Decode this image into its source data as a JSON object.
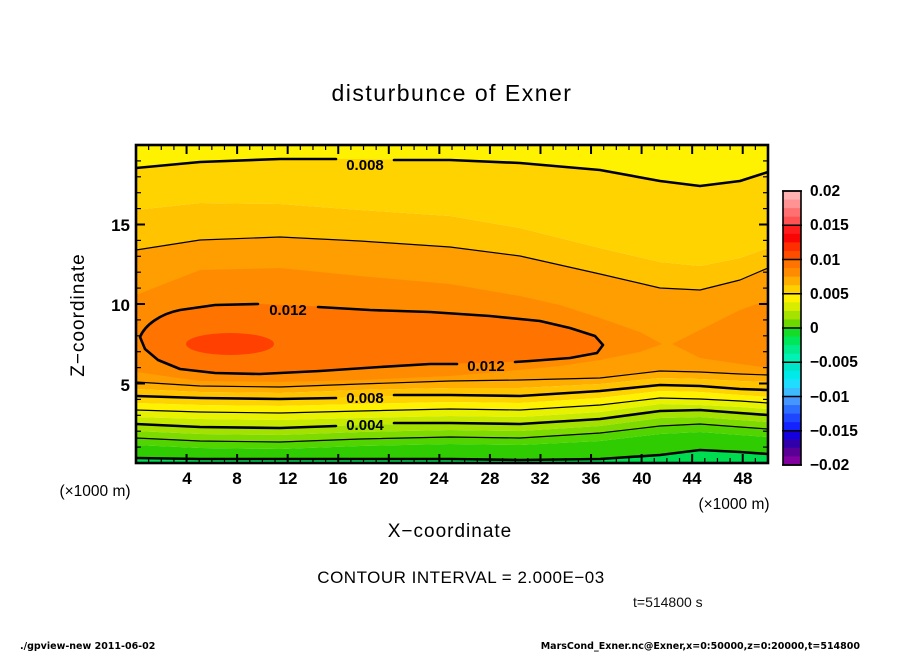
{
  "title": "disturbunce of Exner",
  "axes": {
    "x": {
      "label": "X−coordinate",
      "unit": "(×1000 m)",
      "tick_labels": [
        "4",
        "8",
        "12",
        "16",
        "20",
        "24",
        "28",
        "32",
        "36",
        "40",
        "44",
        "48"
      ],
      "range": [
        0,
        50
      ]
    },
    "y": {
      "label": "Z−coordinate",
      "unit": "(×1000 m)",
      "tick_labels": [
        "5",
        "10",
        "15"
      ],
      "range": [
        0,
        20
      ]
    }
  },
  "contours": {
    "labels": [
      "0.008",
      "0.012",
      "0.012",
      "0.008",
      "0.004"
    ]
  },
  "palette": {
    "p0135": "#ff4000",
    "p0125": "#ff7300",
    "p0115": "#ff8c00",
    "p0105": "#ff9e00",
    "p0095": "#ffad00",
    "p0085": "#ffc300",
    "p0075": "#ffd300",
    "p0065": "#fff200",
    "p0055": "#e8f200",
    "p0045": "#c8ea00",
    "p0035": "#a4e000",
    "p0025": "#7edb00",
    "p0015": "#52d400",
    "p0005": "#2ecc00",
    "pneg": "#00dc50"
  },
  "colorbar": {
    "tick_labels": [
      "0.02",
      "0.015",
      "0.01",
      "0.005",
      "0",
      "−0.005",
      "−0.01",
      "−0.015",
      "−0.02"
    ],
    "cell_colors": [
      "#ffb0b0",
      "#ff9292",
      "#ff7070",
      "#ff5252",
      "#ff1c1c",
      "#fa0505",
      "#ff2e00",
      "#ff4d00",
      "#ff7300",
      "#ff8c00",
      "#ffad00",
      "#ffd000",
      "#fff000",
      "#d8ec00",
      "#a6e200",
      "#6cd800",
      "#14dc28",
      "#00e65a",
      "#00ec8c",
      "#00f2b4",
      "#00e4c8",
      "#00eaea",
      "#20ddff",
      "#3cbcff",
      "#4696ff",
      "#2e6eff",
      "#1e46ff",
      "#1422ff",
      "#1400dc",
      "#3200aa",
      "#5a0096",
      "#8200a0"
    ]
  },
  "annotations": {
    "contour_interval": "CONTOUR INTERVAL = 2.000E−03",
    "time": "t=514800 s"
  },
  "footer": {
    "left": "./gpview-new  2011-06-02",
    "right": "MarsCond_Exner.nc@Exner,x=0:50000,z=0:20000,t=514800"
  },
  "chart_data": {
    "type": "heatmap",
    "title": "disturbunce of Exner",
    "xlabel": "X−coordinate (×1000 m)",
    "ylabel": "Z−coordinate (×1000 m)",
    "xlim": [
      0,
      50
    ],
    "ylim": [
      0,
      20
    ],
    "contour_interval": 0.002,
    "thick_contour_levels": [
      0.0,
      0.004,
      0.008,
      0.012
    ],
    "thin_contour_levels": [
      0.002,
      0.006,
      0.01
    ],
    "labeled_contours": [
      0.008,
      0.012,
      0.012,
      0.008,
      0.004
    ],
    "colorbar_ticks": [
      0.02,
      0.015,
      0.01,
      0.005,
      0,
      -0.005,
      -0.01,
      -0.015,
      -0.02
    ],
    "colorbar_range": [
      -0.02,
      0.02
    ],
    "legend_position": "right",
    "grid": false,
    "x": [
      0,
      5,
      10,
      15,
      20,
      25,
      30,
      35,
      40,
      45,
      50
    ],
    "z": [
      0,
      2.5,
      5,
      7.5,
      10,
      12.5,
      15,
      17.5,
      20
    ],
    "values_by_z_row": [
      [
        0.001,
        0.0008,
        0.0006,
        0.0006,
        0.0006,
        0.0006,
        0.0006,
        0.0008,
        0.0005,
        -0.001,
        -0.0005
      ],
      [
        0.004,
        0.0035,
        0.004,
        0.0045,
        0.0045,
        0.0045,
        0.0045,
        0.005,
        0.006,
        0.005,
        0.0045
      ],
      [
        0.01,
        0.009,
        0.0095,
        0.01,
        0.01,
        0.01,
        0.01,
        0.0105,
        0.011,
        0.01,
        0.0095
      ],
      [
        0.012,
        0.0132,
        0.0135,
        0.0128,
        0.0125,
        0.0126,
        0.0127,
        0.0125,
        0.011,
        0.0112,
        0.0118
      ],
      [
        0.0115,
        0.012,
        0.0118,
        0.0115,
        0.0113,
        0.0112,
        0.0112,
        0.011,
        0.0105,
        0.0105,
        0.011
      ],
      [
        0.01,
        0.0103,
        0.0103,
        0.0101,
        0.01,
        0.0099,
        0.0097,
        0.0094,
        0.009,
        0.0092,
        0.0096
      ],
      [
        0.009,
        0.0092,
        0.0092,
        0.0091,
        0.009,
        0.0089,
        0.0087,
        0.0083,
        0.008,
        0.0082,
        0.0086
      ],
      [
        0.0082,
        0.0083,
        0.0083,
        0.0082,
        0.0082,
        0.0081,
        0.0079,
        0.0076,
        0.0074,
        0.0076,
        0.0079
      ],
      [
        0.007,
        0.007,
        0.007,
        0.007,
        0.007,
        0.0069,
        0.0067,
        0.0064,
        0.0063,
        0.0065,
        0.0067
      ]
    ],
    "notes": "Filled rainbow contour plot; maximum ~0.0135 near x=9, z=7.5; closed 0.012 contour spans x≈0.5–37; saddle near x=42, z=7.5; values fall to ~0 at z=0 with slightly negative pocket near x=44–50."
  }
}
